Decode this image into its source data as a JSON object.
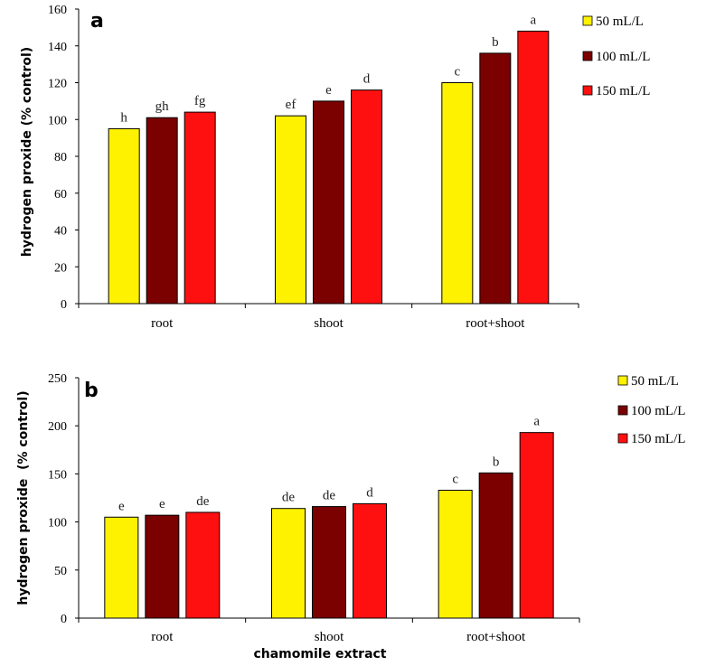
{
  "chart_data": [
    {
      "type": "bar",
      "panel": "a",
      "categories": [
        "root",
        "shoot",
        "root+shoot"
      ],
      "series": [
        {
          "name": "50 mL/L",
          "color": "#FFF200",
          "values": [
            95,
            102,
            120
          ],
          "letters": [
            "h",
            "ef",
            "c"
          ]
        },
        {
          "name": "100 mL/L",
          "color": "#7B0000",
          "values": [
            101,
            110,
            136
          ],
          "letters": [
            "gh",
            "e",
            "b"
          ]
        },
        {
          "name": "150 mL/L",
          "color": "#FF1010",
          "values": [
            104,
            116,
            148
          ],
          "letters": [
            "fg",
            "d",
            "a"
          ]
        }
      ],
      "ylabel": "hydrogen proxide (% control)",
      "xlabel": "",
      "ylim": [
        0,
        160
      ],
      "yticks": [
        "0",
        "20",
        "40",
        "60",
        "80",
        "100",
        "120",
        "140",
        "160"
      ],
      "grid": false,
      "legend_position": "right"
    },
    {
      "type": "bar",
      "panel": "b",
      "categories": [
        "root",
        "shoot",
        "root+shoot"
      ],
      "series": [
        {
          "name": "50 mL/L",
          "color": "#FFF200",
          "values": [
            105,
            114,
            133
          ],
          "letters": [
            "e",
            "de",
            "c"
          ]
        },
        {
          "name": "100 mL/L",
          "color": "#7B0000",
          "values": [
            107,
            116,
            151
          ],
          "letters": [
            "e",
            "de",
            "b"
          ]
        },
        {
          "name": "150 mL/L",
          "color": "#FF1010",
          "values": [
            110,
            119,
            193
          ],
          "letters": [
            "de",
            "d",
            "a"
          ]
        }
      ],
      "ylabel": "hydrogen proxide  (% control)",
      "xlabel": "chamomile extract",
      "ylim": [
        0,
        250
      ],
      "yticks": [
        "0",
        "50",
        "100",
        "150",
        "200",
        "250"
      ],
      "grid": false,
      "legend_position": "right"
    }
  ]
}
